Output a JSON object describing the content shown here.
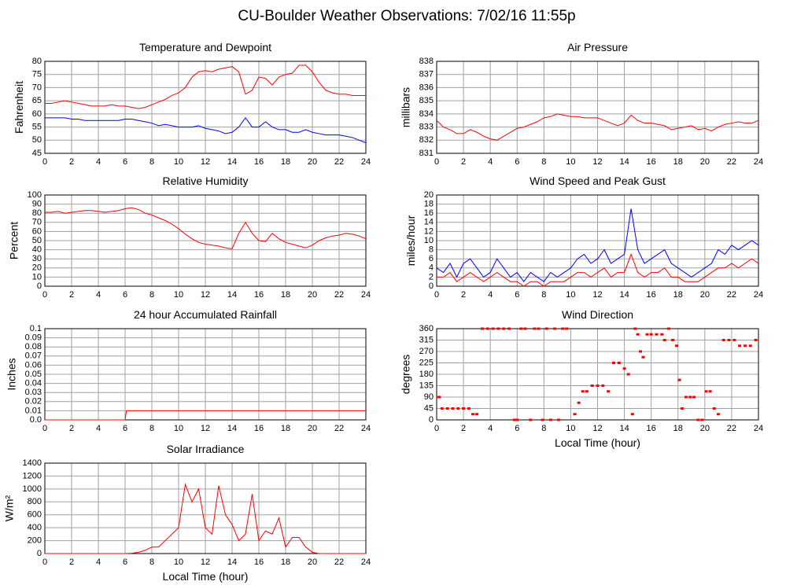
{
  "title": "CU-Boulder Weather Observations: 7/02/16 11:55p",
  "chart_data": [
    {
      "type": "line",
      "title": "Temperature and Dewpoint",
      "ylabel": "Fahrenheit",
      "x": [
        0,
        0.5,
        1,
        1.5,
        2,
        2.5,
        3,
        3.5,
        4,
        4.5,
        5,
        5.5,
        6,
        6.5,
        7,
        7.5,
        8,
        8.5,
        9,
        9.5,
        10,
        10.5,
        11,
        11.5,
        12,
        12.5,
        13,
        13.5,
        14,
        14.5,
        15,
        15.5,
        16,
        16.5,
        17,
        17.5,
        18,
        18.5,
        19,
        19.5,
        20,
        20.5,
        21,
        21.5,
        22,
        22.5,
        23,
        23.5,
        24
      ],
      "series": [
        {
          "color": "#ff0000",
          "values": [
            64,
            64,
            64.5,
            65,
            64.5,
            64,
            63.5,
            63,
            63,
            63,
            63.5,
            63,
            63,
            62.5,
            62,
            62.5,
            63.5,
            64.5,
            65.5,
            67,
            68,
            70,
            74,
            76,
            76.5,
            76,
            77,
            77.5,
            78,
            76,
            67.5,
            69,
            74,
            73.5,
            71,
            74,
            75,
            75.5,
            78.5,
            78.5,
            76,
            72,
            69,
            68,
            67.5,
            67.5,
            67,
            67,
            67
          ]
        },
        {
          "color": "#0000ff",
          "values": [
            58.5,
            58.5,
            58.5,
            58.5,
            58,
            58,
            57.5,
            57.5,
            57.5,
            57.5,
            57.5,
            57.5,
            58,
            58,
            57.5,
            57,
            56.5,
            55.5,
            56,
            55.5,
            55,
            55,
            55,
            55.5,
            54.5,
            54,
            53.5,
            52.5,
            53,
            55,
            58.5,
            55,
            55,
            57,
            55,
            54,
            54,
            53,
            53,
            54,
            53,
            52.5,
            52,
            52,
            52,
            51.5,
            51,
            50,
            49
          ]
        }
      ],
      "xlim": [
        0,
        24
      ],
      "xticks": [
        0,
        2,
        4,
        6,
        8,
        10,
        12,
        14,
        16,
        18,
        20,
        22,
        24
      ],
      "ylim": [
        45,
        80
      ],
      "yticks": [
        45,
        50,
        55,
        60,
        65,
        70,
        75,
        80
      ],
      "grid": true
    },
    {
      "type": "line",
      "title": "Air Pressure",
      "ylabel": "millibars",
      "x": [
        0,
        0.5,
        1,
        1.5,
        2,
        2.5,
        3,
        3.5,
        4,
        4.5,
        5,
        5.5,
        6,
        6.5,
        7,
        7.5,
        8,
        8.5,
        9,
        9.5,
        10,
        10.5,
        11,
        11.5,
        12,
        12.5,
        13,
        13.5,
        14,
        14.5,
        15,
        15.5,
        16,
        16.5,
        17,
        17.5,
        18,
        18.5,
        19,
        19.5,
        20,
        20.5,
        21,
        21.5,
        22,
        22.5,
        23,
        23.5,
        24
      ],
      "series": [
        {
          "color": "#ff0000",
          "values": [
            833.5,
            833,
            832.8,
            832.5,
            832.5,
            832.8,
            832.6,
            832.3,
            832.1,
            832,
            832.3,
            832.6,
            832.9,
            833,
            833.2,
            833.4,
            833.7,
            833.8,
            834,
            833.9,
            833.8,
            833.8,
            833.7,
            833.7,
            833.7,
            833.5,
            833.3,
            833.1,
            833.3,
            833.9,
            833.5,
            833.3,
            833.3,
            833.2,
            833.1,
            832.8,
            832.9,
            833,
            833.1,
            832.8,
            832.9,
            832.7,
            833,
            833.2,
            833.3,
            833.4,
            833.3,
            833.3,
            833.5
          ]
        }
      ],
      "xlim": [
        0,
        24
      ],
      "xticks": [
        0,
        2,
        4,
        6,
        8,
        10,
        12,
        14,
        16,
        18,
        20,
        22,
        24
      ],
      "ylim": [
        831,
        838
      ],
      "yticks": [
        831,
        832,
        833,
        834,
        835,
        836,
        837,
        838
      ],
      "grid": true
    },
    {
      "type": "line",
      "title": "Relative Humidity",
      "ylabel": "Percent",
      "x": [
        0,
        0.5,
        1,
        1.5,
        2,
        2.5,
        3,
        3.5,
        4,
        4.5,
        5,
        5.5,
        6,
        6.5,
        7,
        7.5,
        8,
        8.5,
        9,
        9.5,
        10,
        10.5,
        11,
        11.5,
        12,
        12.5,
        13,
        13.5,
        14,
        14.5,
        15,
        15.5,
        16,
        16.5,
        17,
        17.5,
        18,
        18.5,
        19,
        19.5,
        20,
        20.5,
        21,
        21.5,
        22,
        22.5,
        23,
        23.5,
        24
      ],
      "series": [
        {
          "color": "#ff0000",
          "values": [
            81,
            81,
            82,
            80,
            81,
            82,
            83,
            83,
            82,
            81,
            82,
            83,
            85,
            86,
            84,
            80,
            78,
            75,
            72,
            68,
            63,
            57,
            52,
            48,
            46,
            45,
            44,
            42,
            41,
            58,
            70,
            58,
            50,
            49,
            58,
            52,
            48,
            46,
            44,
            42,
            45,
            50,
            53,
            55,
            56,
            58,
            57,
            55,
            52
          ]
        }
      ],
      "xlim": [
        0,
        24
      ],
      "xticks": [
        0,
        2,
        4,
        6,
        8,
        10,
        12,
        14,
        16,
        18,
        20,
        22,
        24
      ],
      "ylim": [
        0,
        100
      ],
      "yticks": [
        0,
        10,
        20,
        30,
        40,
        50,
        60,
        70,
        80,
        90,
        100
      ],
      "grid": true
    },
    {
      "type": "line",
      "title": "Wind Speed and Peak Gust",
      "ylabel": "miles/hour",
      "x": [
        0,
        0.5,
        1,
        1.5,
        2,
        2.5,
        3,
        3.5,
        4,
        4.5,
        5,
        5.5,
        6,
        6.5,
        7,
        7.5,
        8,
        8.5,
        9,
        9.5,
        10,
        10.5,
        11,
        11.5,
        12,
        12.5,
        13,
        13.5,
        14,
        14.5,
        15,
        15.5,
        16,
        16.5,
        17,
        17.5,
        18,
        18.5,
        19,
        19.5,
        20,
        20.5,
        21,
        21.5,
        22,
        22.5,
        23,
        23.5,
        24
      ],
      "series": [
        {
          "color": "#0000ff",
          "values": [
            4,
            3,
            5,
            2,
            5,
            6,
            4,
            2,
            3,
            6,
            4,
            2,
            3,
            1,
            3,
            2,
            1,
            3,
            2,
            3,
            4,
            6,
            7,
            5,
            6,
            8,
            5,
            6,
            7,
            17,
            8,
            5,
            6,
            7,
            8,
            5,
            4,
            3,
            2,
            3,
            4,
            5,
            8,
            7,
            9,
            8,
            9,
            10,
            9
          ]
        },
        {
          "color": "#ff0000",
          "values": [
            2,
            2,
            3,
            1,
            2,
            3,
            2,
            1,
            2,
            3,
            2,
            1,
            1,
            0,
            1,
            1,
            0,
            1,
            1,
            1,
            2,
            3,
            3,
            2,
            3,
            4,
            2,
            3,
            3,
            7,
            3,
            2,
            3,
            3,
            4,
            2,
            2,
            1,
            1,
            1,
            2,
            3,
            4,
            4,
            5,
            4,
            5,
            6,
            5
          ]
        }
      ],
      "xlim": [
        0,
        24
      ],
      "xticks": [
        0,
        2,
        4,
        6,
        8,
        10,
        12,
        14,
        16,
        18,
        20,
        22,
        24
      ],
      "ylim": [
        0,
        20
      ],
      "yticks": [
        0,
        2,
        4,
        6,
        8,
        10,
        12,
        14,
        16,
        18,
        20
      ],
      "grid": true
    },
    {
      "type": "line",
      "title": "24 hour Accumulated Rainfall",
      "ylabel": "Inches",
      "x": [
        0,
        6,
        6.1,
        24
      ],
      "series": [
        {
          "color": "#ff0000",
          "values": [
            0,
            0,
            0.01,
            0.01
          ]
        }
      ],
      "xlim": [
        0,
        24
      ],
      "xticks": [
        0,
        2,
        4,
        6,
        8,
        10,
        12,
        14,
        16,
        18,
        20,
        22,
        24
      ],
      "ylim": [
        0,
        0.1
      ],
      "yticks": [
        {
          "value": 0,
          "label": "0.0"
        },
        0.01,
        0.02,
        0.03,
        0.04,
        0.05,
        0.06,
        0.07,
        0.08,
        0.09,
        0.1
      ],
      "grid": true
    },
    {
      "type": "scatter",
      "title": "Wind Direction",
      "ylabel": "degrees",
      "xlabel": "Local Time (hour)",
      "x": [
        0.1,
        0.2,
        0.4,
        0.8,
        1.2,
        1.6,
        2.0,
        2.4,
        2.7,
        3.0,
        3.4,
        3.8,
        4.2,
        4.6,
        5.0,
        5.4,
        5.8,
        6.0,
        6.3,
        6.6,
        7.0,
        7.3,
        7.6,
        7.9,
        8.2,
        8.5,
        8.8,
        9.1,
        9.4,
        9.7,
        10.3,
        10.6,
        10.9,
        11.2,
        11.6,
        12.0,
        12.4,
        12.8,
        13.2,
        13.6,
        14.0,
        14.3,
        14.6,
        14.8,
        15.0,
        15.2,
        15.4,
        15.7,
        16.0,
        16.4,
        16.8,
        17.0,
        17.3,
        17.6,
        17.9,
        18.1,
        18.3,
        18.6,
        18.9,
        19.2,
        19.5,
        19.8,
        20.1,
        20.4,
        20.7,
        21.0,
        21.4,
        21.8,
        22.2,
        22.6,
        23.0,
        23.4,
        23.8
      ],
      "series": [
        {
          "color": "#ff0000",
          "values": [
            90,
            90,
            45,
            45,
            45,
            45,
            45,
            45,
            22.5,
            22.5,
            360,
            360,
            360,
            360,
            360,
            360,
            0,
            0,
            360,
            360,
            0,
            360,
            360,
            0,
            360,
            0,
            360,
            0,
            360,
            360,
            22.5,
            67.5,
            112.5,
            112.5,
            135,
            135,
            135,
            112.5,
            225,
            225,
            202.5,
            180,
            22.5,
            360,
            337.5,
            270,
            247.5,
            337.5,
            337.5,
            337.5,
            337.5,
            315,
            360,
            315,
            292.5,
            157.5,
            45,
            90,
            90,
            90,
            0,
            0,
            112.5,
            112.5,
            45,
            22.5,
            315,
            315,
            315,
            292.5,
            292.5,
            292.5,
            315
          ]
        }
      ],
      "xlim": [
        0,
        24
      ],
      "xticks": [
        0,
        2,
        4,
        6,
        8,
        10,
        12,
        14,
        16,
        18,
        20,
        22,
        24
      ],
      "ylim": [
        0,
        360
      ],
      "yticks": [
        0,
        45,
        90,
        135,
        180,
        225,
        270,
        315,
        360
      ],
      "grid": true
    },
    {
      "type": "line",
      "title": "Solar Irradiance",
      "ylabel": "W/m²",
      "xlabel": "Local Time (hour)",
      "x": [
        0,
        0.5,
        1,
        1.5,
        2,
        2.5,
        3,
        3.5,
        4,
        4.5,
        5,
        5.5,
        6,
        6.5,
        7,
        7.5,
        8,
        8.5,
        9,
        9.5,
        10,
        10.5,
        11,
        11.5,
        12,
        12.5,
        13,
        13.5,
        14,
        14.5,
        15,
        15.5,
        16,
        16.5,
        17,
        17.5,
        18,
        18.5,
        19,
        19.5,
        20,
        20.5,
        21,
        21.5,
        22,
        22.5,
        23,
        23.5,
        24
      ],
      "series": [
        {
          "color": "#ff0000",
          "values": [
            0,
            0,
            0,
            0,
            0,
            0,
            0,
            0,
            0,
            0,
            0,
            0,
            0,
            5,
            20,
            50,
            100,
            100,
            200,
            300,
            400,
            1070,
            800,
            1000,
            400,
            300,
            1050,
            600,
            450,
            200,
            300,
            920,
            200,
            350,
            300,
            550,
            100,
            250,
            250,
            100,
            20,
            0,
            0,
            0,
            0,
            0,
            0,
            0,
            0
          ]
        }
      ],
      "xlim": [
        0,
        24
      ],
      "xticks": [
        0,
        2,
        4,
        6,
        8,
        10,
        12,
        14,
        16,
        18,
        20,
        22,
        24
      ],
      "ylim": [
        0,
        1400
      ],
      "yticks": [
        0,
        200,
        400,
        600,
        800,
        1000,
        1200,
        1400
      ],
      "grid": true
    }
  ]
}
